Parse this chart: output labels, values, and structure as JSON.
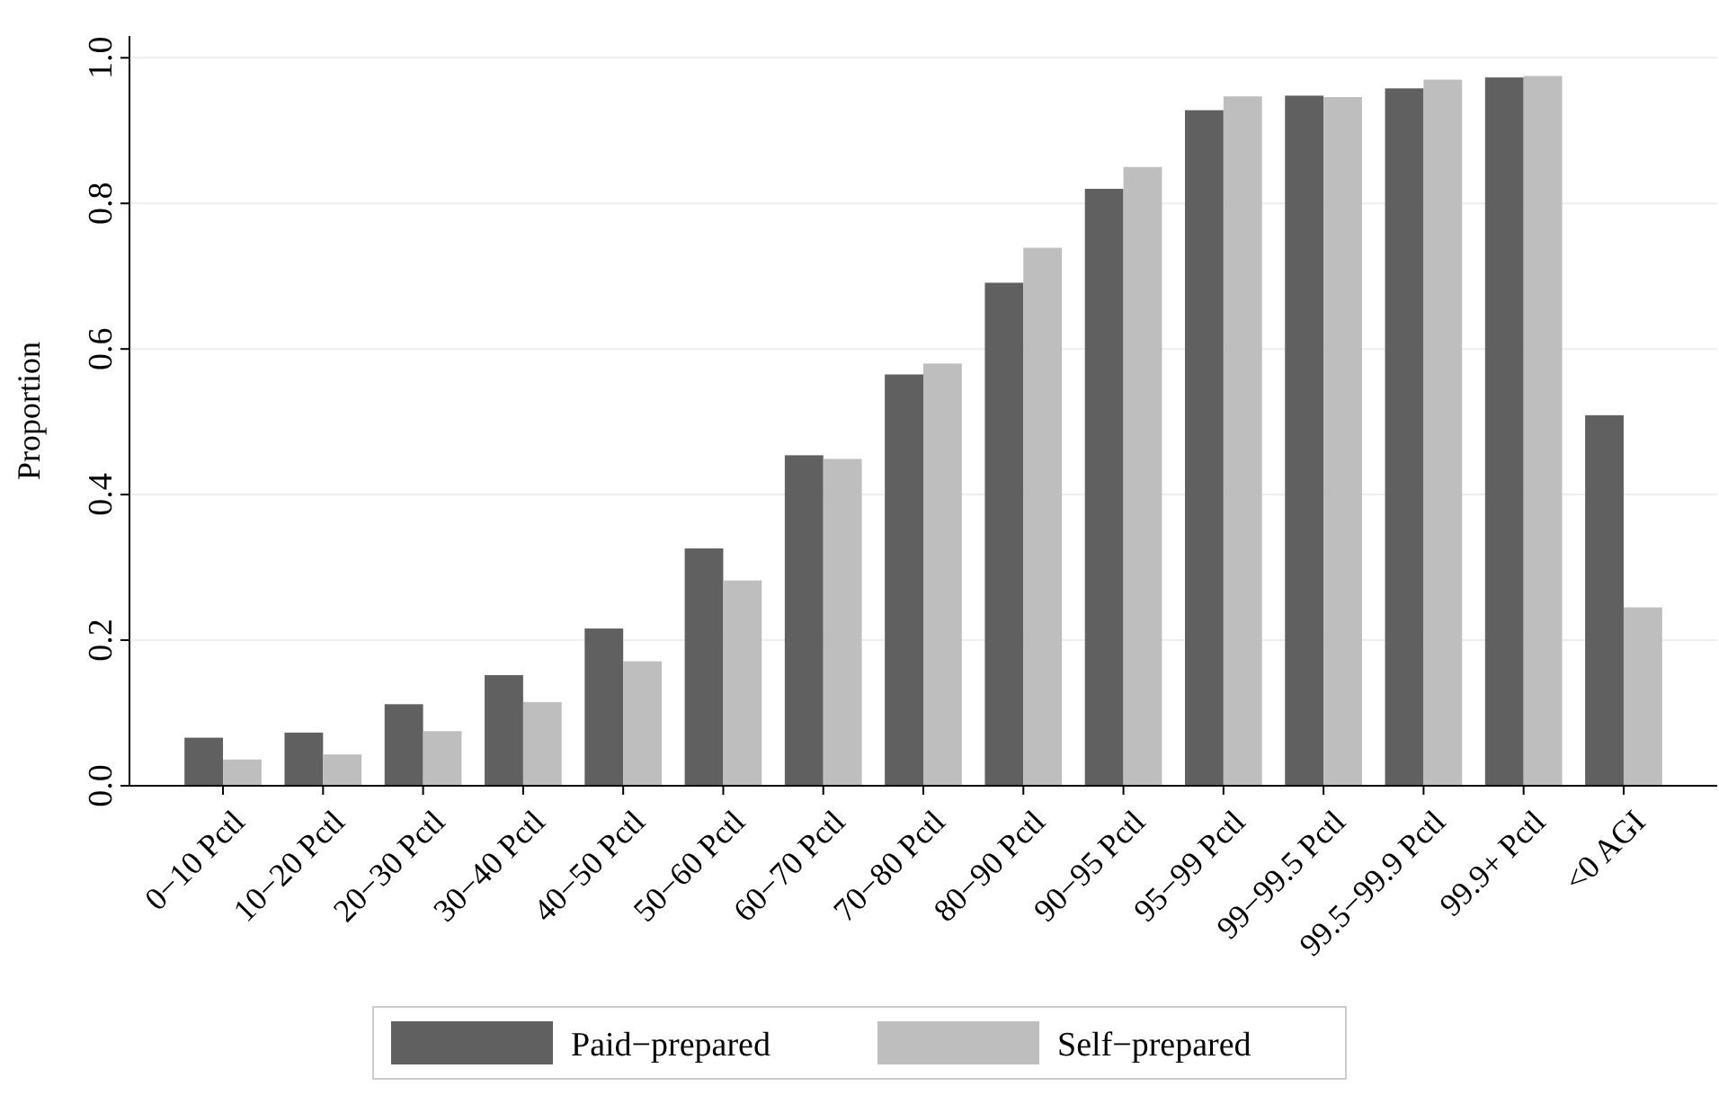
{
  "chart_data": {
    "type": "bar",
    "ylabel": "Proportion",
    "categories": [
      "0−10 Pctl",
      "10−20 Pctl",
      "20−30 Pctl",
      "30−40 Pctl",
      "40−50 Pctl",
      "50−60 Pctl",
      "60−70 Pctl",
      "70−80 Pctl",
      "80−90 Pctl",
      "90−95 Pctl",
      "95−99 Pctl",
      "99−99.5 Pctl",
      "99.5−99.9 Pctl",
      "99.9+ Pctl",
      "<0 AGI"
    ],
    "series": [
      {
        "name": "Paid−prepared",
        "color": "#606060",
        "values": [
          0.066,
          0.073,
          0.112,
          0.152,
          0.216,
          0.326,
          0.454,
          0.565,
          0.691,
          0.82,
          0.928,
          0.948,
          0.958,
          0.973,
          0.509
        ]
      },
      {
        "name": "Self−prepared",
        "color": "#bebebe",
        "values": [
          0.036,
          0.043,
          0.075,
          0.115,
          0.171,
          0.282,
          0.449,
          0.58,
          0.739,
          0.85,
          0.947,
          0.946,
          0.97,
          0.975,
          0.245
        ]
      }
    ],
    "ylim": [
      0,
      1.03
    ],
    "yticks": [
      {
        "value": 0,
        "label": "0.0"
      },
      0.2,
      0.4,
      0.6,
      0.8,
      {
        "value": 1,
        "label": "1.0"
      }
    ],
    "grid": "y",
    "legend": "bottom"
  }
}
